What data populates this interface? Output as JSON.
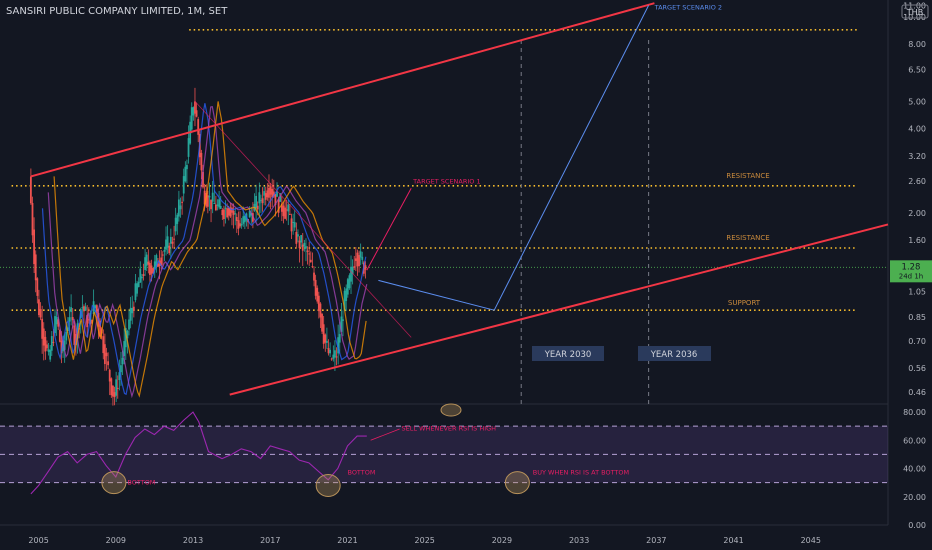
{
  "header": {
    "title": "SANSIRI PUBLIC COMPANY LIMITED, 1M, SET",
    "currency": "THB"
  },
  "price_tag": {
    "price": "1.28",
    "countdown": "24d 1h"
  },
  "colors": {
    "background": "#131722",
    "channel": "#f23645",
    "levels": "#fbc02d",
    "current_price": "#4caf50",
    "rsi_line": "#9c27b0",
    "rsi_band": "#7e57c2",
    "annotation_pink": "#e040fb",
    "annotation_orange": "#c98a3c",
    "scenario_blue": "#5b8def",
    "circle_fill": "#b8925a",
    "up_candle": "#26a69a",
    "down_candle": "#ef5350"
  },
  "annotations": {
    "target_scenario_1": "TARGET  SCENARIO 1",
    "target_scenario_2": "TARGET SCENARIO 2",
    "resistance_upper": "RESISTANCE",
    "resistance_lower": "RESISTANCE",
    "support": "SUPPORT",
    "year_2030": "YEAR  2030",
    "year_2036": "YEAR  2036",
    "rsi_sell": "SELL WHENEVER RSI IS HIGH",
    "rsi_bottom_1": "BOTTOM",
    "rsi_bottom_2": "BOTTOM",
    "rsi_buy": "BUY WHEN RSI IS AT BOTTOM"
  },
  "chart_data": [
    {
      "type": "candlestick",
      "title": "SANSIRI PUBLIC COMPANY LIMITED, 1M, SET",
      "y_scale": "log",
      "ylim": [
        0.42,
        11.5
      ],
      "xlim": [
        2003.0,
        2049.0
      ],
      "x_ticks": [
        "2005",
        "2009",
        "2013",
        "2017",
        "2021",
        "2025",
        "2029",
        "2033",
        "2037",
        "2041",
        "2045"
      ],
      "y_ticks": [
        "11.00",
        "10.00",
        "8.00",
        "6.50",
        "5.00",
        "4.00",
        "3.20",
        "2.60",
        "2.00",
        "1.60",
        "1.28",
        "1.05",
        "0.85",
        "0.70",
        "0.56",
        "0.46"
      ],
      "price_path": [
        [
          2004.6,
          2.7
        ],
        [
          2004.8,
          1.6
        ],
        [
          2005.0,
          1.0
        ],
        [
          2005.3,
          0.75
        ],
        [
          2005.6,
          0.6
        ],
        [
          2006.0,
          0.85
        ],
        [
          2006.3,
          0.62
        ],
        [
          2006.7,
          0.9
        ],
        [
          2007.0,
          0.7
        ],
        [
          2007.3,
          0.95
        ],
        [
          2007.7,
          0.8
        ],
        [
          2008.0,
          0.95
        ],
        [
          2008.4,
          0.7
        ],
        [
          2008.8,
          0.5
        ],
        [
          2009.0,
          0.44
        ],
        [
          2009.4,
          0.6
        ],
        [
          2009.8,
          0.85
        ],
        [
          2010.2,
          1.1
        ],
        [
          2010.7,
          1.35
        ],
        [
          2011.0,
          1.25
        ],
        [
          2011.5,
          1.45
        ],
        [
          2012.0,
          1.6
        ],
        [
          2012.5,
          2.3
        ],
        [
          2012.8,
          3.3
        ],
        [
          2013.1,
          5.0
        ],
        [
          2013.3,
          4.2
        ],
        [
          2013.6,
          2.4
        ],
        [
          2014.0,
          2.2
        ],
        [
          2014.5,
          2.05
        ],
        [
          2015.0,
          2.1
        ],
        [
          2015.5,
          1.8
        ],
        [
          2016.0,
          1.95
        ],
        [
          2016.5,
          2.2
        ],
        [
          2017.0,
          2.5
        ],
        [
          2017.5,
          2.2
        ],
        [
          2018.0,
          2.0
        ],
        [
          2018.5,
          1.6
        ],
        [
          2019.0,
          1.45
        ],
        [
          2019.3,
          1.2
        ],
        [
          2019.6,
          0.95
        ],
        [
          2019.9,
          0.7
        ],
        [
          2020.2,
          0.6
        ],
        [
          2020.5,
          0.62
        ],
        [
          2020.9,
          0.95
        ],
        [
          2021.2,
          1.15
        ],
        [
          2021.5,
          1.45
        ],
        [
          2021.8,
          1.35
        ],
        [
          2022.0,
          1.28
        ]
      ],
      "trend_lines": [
        {
          "name": "channel_upper",
          "points": [
            [
              2004.6,
              2.7
            ],
            [
              2036.9,
              11.2
            ]
          ]
        },
        {
          "name": "channel_lower",
          "points": [
            [
              2014.9,
              0.45
            ],
            [
              2049.0,
              1.82
            ]
          ]
        }
      ],
      "horizontal_levels": [
        {
          "name": "upper_target_level",
          "value": 9.0,
          "x_range": [
            2012.8,
            2047.4
          ]
        },
        {
          "name": "resistance_upper",
          "value": 2.5,
          "x_range": [
            2003.6,
            2047.4
          ]
        },
        {
          "name": "resistance_lower",
          "value": 1.5,
          "x_range": [
            2003.6,
            2047.4
          ]
        },
        {
          "name": "support",
          "value": 0.9,
          "x_range": [
            2003.6,
            2047.4
          ]
        }
      ],
      "current_price": 1.28,
      "scenario_paths": [
        {
          "name": "scenario_1",
          "points": [
            [
              2022.0,
              1.25
            ],
            [
              2024.3,
              2.45
            ]
          ]
        },
        {
          "name": "scenario_2",
          "points": [
            [
              2022.6,
              1.15
            ],
            [
              2028.6,
              0.9
            ],
            [
              2036.6,
              11.0
            ]
          ]
        },
        {
          "name": "decline_diagonal",
          "points": [
            [
              2013.1,
              5.0
            ],
            [
              2024.3,
              0.72
            ]
          ]
        }
      ],
      "vertical_markers": [
        2030.0,
        2036.6
      ]
    },
    {
      "type": "line",
      "series": [
        {
          "name": "RSI",
          "x": [
            2004.6,
            2005.0,
            2005.5,
            2006.0,
            2006.5,
            2007.0,
            2007.5,
            2008.0,
            2008.5,
            2009.0,
            2009.5,
            2010.0,
            2010.5,
            2011.0,
            2011.5,
            2012.0,
            2012.5,
            2013.0,
            2013.3,
            2013.8,
            2014.5,
            2015.0,
            2015.5,
            2016.0,
            2016.5,
            2017.0,
            2017.5,
            2018.0,
            2018.5,
            2019.0,
            2019.5,
            2020.0,
            2020.5,
            2021.0,
            2021.5,
            2022.0
          ],
          "values": [
            22,
            28,
            38,
            48,
            52,
            44,
            50,
            52,
            42,
            34,
            50,
            62,
            68,
            64,
            70,
            67,
            74,
            80,
            73,
            52,
            47,
            50,
            54,
            52,
            47,
            56,
            54,
            52,
            46,
            44,
            38,
            32,
            40,
            56,
            63,
            63
          ]
        }
      ],
      "ylim": [
        0,
        85
      ],
      "y_ticks": [
        "80.00",
        "60.00",
        "40.00",
        "20.00",
        "0.00"
      ],
      "bands": [
        70,
        50,
        30
      ]
    }
  ]
}
